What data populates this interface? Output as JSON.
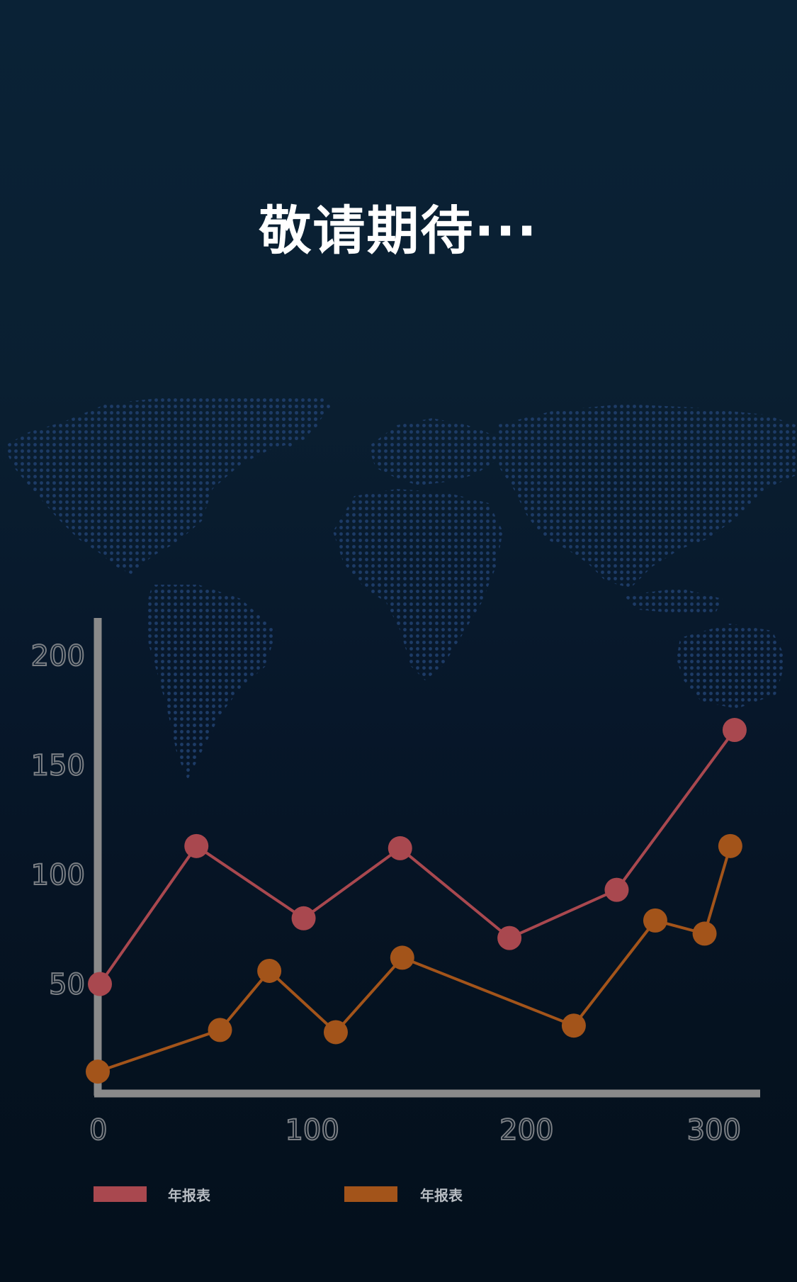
{
  "banner": {
    "title": "敬请期待···"
  },
  "colors": {
    "series_1": "#a9484f",
    "series_2": "#a3541a",
    "axis": "#8a8a8a",
    "map_dots": "#1d3b66"
  },
  "chart_data": {
    "type": "line",
    "xlim": [
      0,
      300
    ],
    "ylim": [
      0,
      200
    ],
    "x_ticks": [
      0,
      100,
      200,
      300
    ],
    "y_ticks": [
      50,
      100,
      150,
      200
    ],
    "x_tick_labels": [
      "0",
      "100",
      "200",
      "300"
    ],
    "y_tick_labels": [
      "50",
      "100",
      "150",
      "200"
    ],
    "grid": false,
    "legend_position": "bottom",
    "series": [
      {
        "name": "年报表",
        "color": "#a9484f",
        "points": [
          {
            "x": 1,
            "y": 50
          },
          {
            "x": 46,
            "y": 113
          },
          {
            "x": 96,
            "y": 80
          },
          {
            "x": 141,
            "y": 112
          },
          {
            "x": 192,
            "y": 71
          },
          {
            "x": 242,
            "y": 93
          },
          {
            "x": 297,
            "y": 166
          }
        ]
      },
      {
        "name": "年报表",
        "color": "#a3541a",
        "points": [
          {
            "x": 0,
            "y": 10
          },
          {
            "x": 57,
            "y": 29
          },
          {
            "x": 80,
            "y": 56
          },
          {
            "x": 111,
            "y": 28
          },
          {
            "x": 142,
            "y": 62
          },
          {
            "x": 222,
            "y": 31
          },
          {
            "x": 260,
            "y": 79
          },
          {
            "x": 283,
            "y": 73
          },
          {
            "x": 295,
            "y": 113
          }
        ]
      }
    ]
  }
}
